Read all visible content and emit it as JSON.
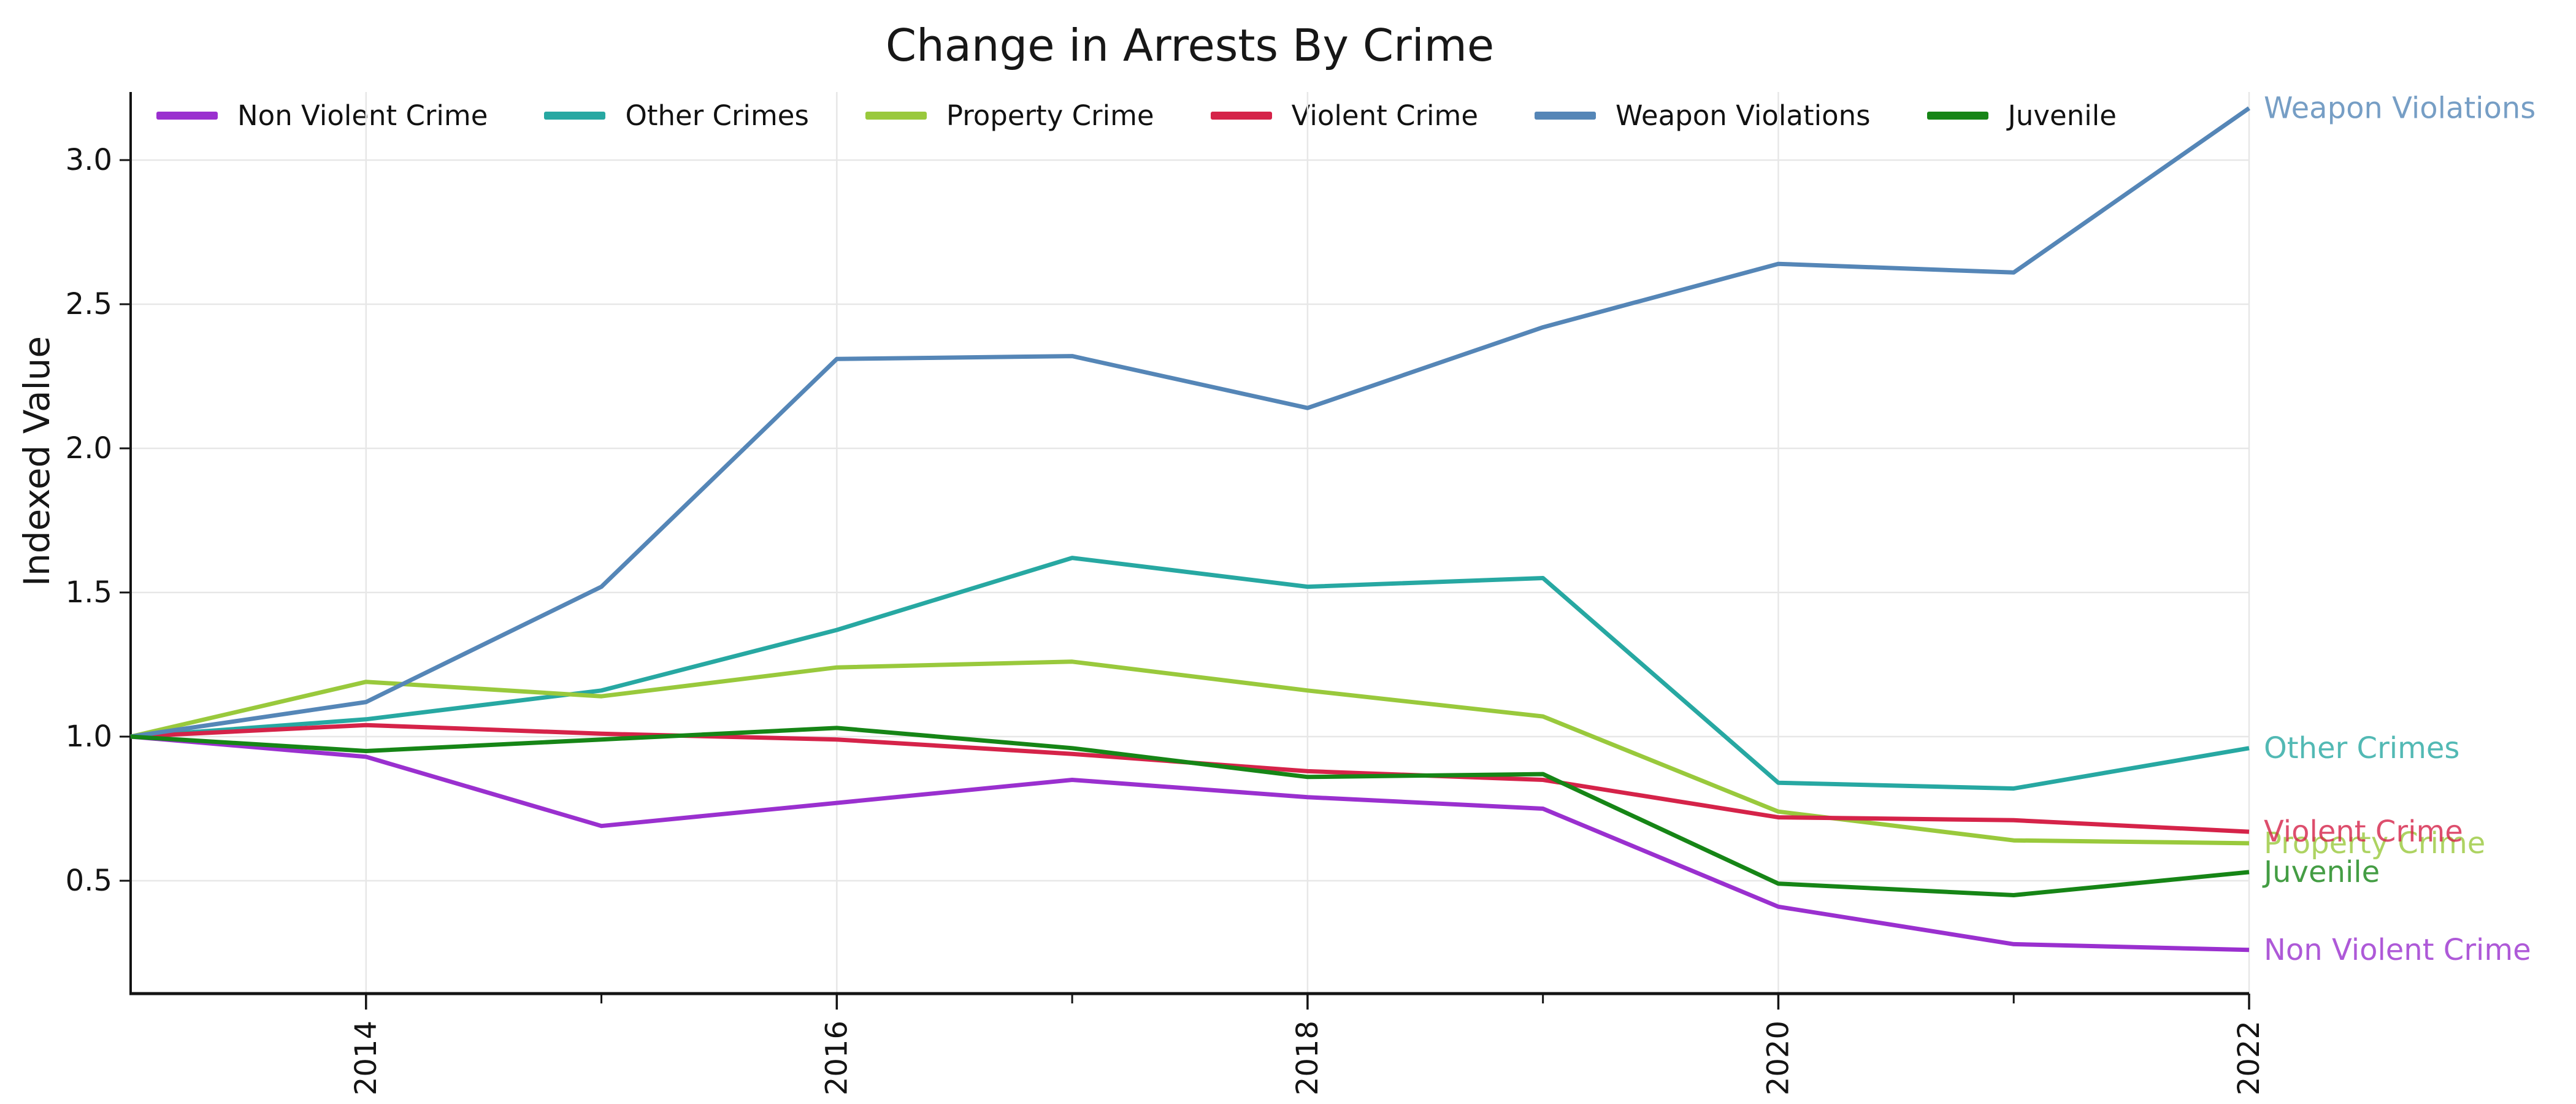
{
  "title": "Change in Arrests By Crime",
  "chart_data": {
    "type": "line",
    "title": "Change in Arrests By Crime",
    "xlabel": "",
    "ylabel": "Indexed Value",
    "grid": true,
    "legend_position": "top",
    "xlim": [
      2013,
      2022
    ],
    "ylim": [
      0.11,
      3.24
    ],
    "x": [
      2013,
      2014,
      2015,
      2016,
      2017,
      2018,
      2019,
      2020,
      2021,
      2022
    ],
    "x_major_ticks": [
      2014,
      2016,
      2018,
      2020,
      2022
    ],
    "x_tick_labels": [
      "2014",
      "2016",
      "2018",
      "2020",
      "2022"
    ],
    "x_minor_ticks": [
      2015,
      2017,
      2019,
      2021
    ],
    "y_ticks": [
      0.5,
      1.0,
      1.5,
      2.0,
      2.5,
      3.0
    ],
    "y_tick_labels": [
      "0.5",
      "1.0",
      "1.5",
      "2.0",
      "2.5",
      "3.0"
    ],
    "series": [
      {
        "name": "Non Violent Crime",
        "color": "#9a30cf",
        "values": [
          1.0,
          0.93,
          0.69,
          0.77,
          0.85,
          0.79,
          0.75,
          0.41,
          0.28,
          0.26
        ]
      },
      {
        "name": "Other Crimes",
        "color": "#27a8a2",
        "values": [
          1.0,
          1.06,
          1.16,
          1.37,
          1.62,
          1.52,
          1.55,
          0.84,
          0.82,
          0.96
        ]
      },
      {
        "name": "Property Crime",
        "color": "#99c93c",
        "values": [
          1.0,
          1.19,
          1.14,
          1.24,
          1.26,
          1.16,
          1.07,
          0.74,
          0.64,
          0.63
        ]
      },
      {
        "name": "Violent Crime",
        "color": "#d52349",
        "values": [
          1.0,
          1.04,
          1.01,
          0.99,
          0.94,
          0.88,
          0.85,
          0.72,
          0.71,
          0.67
        ]
      },
      {
        "name": "Weapon Violations",
        "color": "#5586b7",
        "values": [
          1.0,
          1.12,
          1.52,
          2.31,
          2.32,
          2.14,
          2.42,
          2.64,
          2.61,
          3.18
        ]
      },
      {
        "name": "Juvenile",
        "color": "#168516",
        "values": [
          1.0,
          0.95,
          0.99,
          1.03,
          0.96,
          0.86,
          0.87,
          0.49,
          0.45,
          0.53
        ]
      }
    ],
    "end_labels": [
      "Weapon Violations",
      "Other Crimes",
      "Violent Crime",
      "Property Crime",
      "Juvenile",
      "Non Violent Crime"
    ]
  },
  "style": {
    "grid_color": "#e7e7e7",
    "axis_color": "#141414",
    "tick_label_color": "#141414",
    "background": "#ffffff",
    "end_label_opacity": "0.8"
  }
}
